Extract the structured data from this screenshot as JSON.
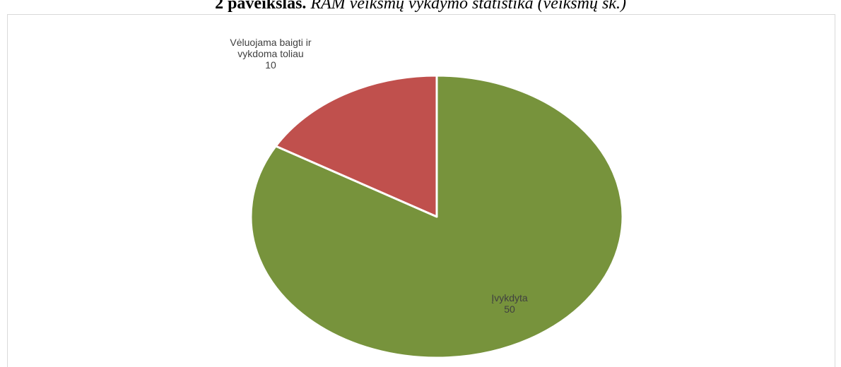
{
  "caption": {
    "prefix_bold": "2 paveikslas.",
    "rest_italic": "RAM veiksmų vykdymo statistika (veiksmų sk.)"
  },
  "chart_data": {
    "type": "pie",
    "title": "",
    "slices": [
      {
        "name": "Įvykdyta",
        "value": 50,
        "color": "#77933c",
        "label_lines": [
          "Įvykdyta"
        ]
      },
      {
        "name": "Vėluojama baigti ir vykdoma toliau",
        "value": 10,
        "color": "#c0504d",
        "label_lines": [
          "Vėluojama baigti ir",
          "vykdoma toliau"
        ]
      }
    ],
    "start": "12 o'clock",
    "direction": "clockwise",
    "edge_color": "#ffffff",
    "legend": "none",
    "data_labels": "category name and value"
  }
}
